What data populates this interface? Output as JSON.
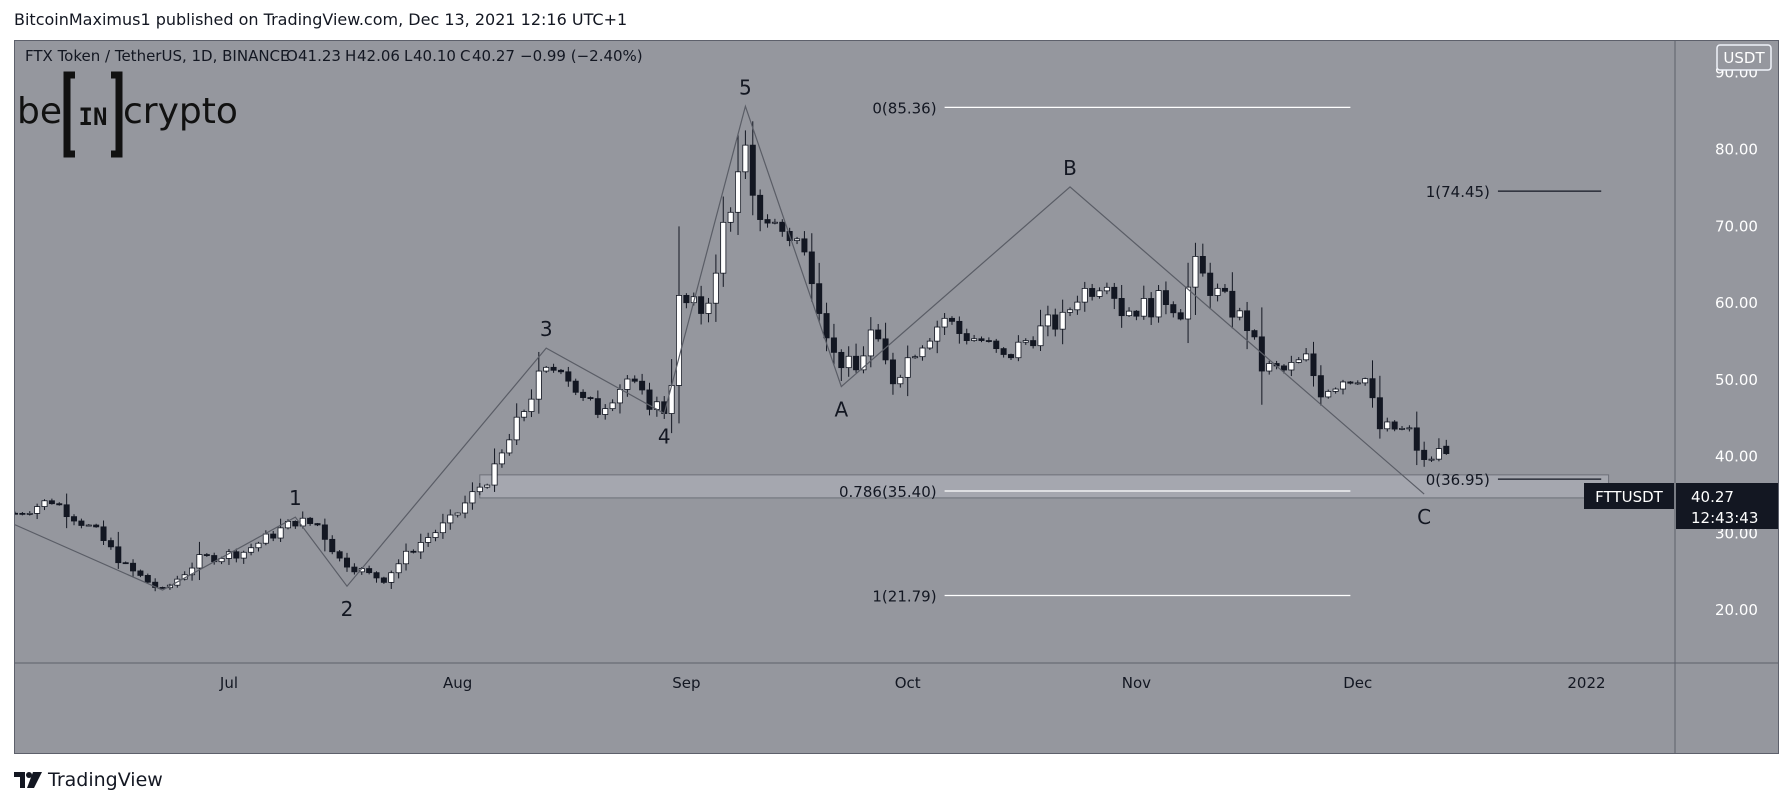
{
  "publish_line": "BitcoinMaximus1 published on TradingView.com, Dec 13, 2021 12:16 UTC+1",
  "logo": {
    "left": "be",
    "middle": "IN",
    "right": "crypto"
  },
  "footer": {
    "brand": "TradingView",
    "icon": "tradingview-logo-icon"
  },
  "colors": {
    "chart_bg": "#95979e",
    "candle_up": "#ffffff",
    "candle_down": "#131722",
    "wave_line": "#5a5d66",
    "fib_line": "#ffffff",
    "last_price_label_bg": "#131722",
    "zone_fill": "#b2b5bd"
  },
  "symbol_header": {
    "title": "FTX Token / TetherUS, 1D, BINANCE",
    "o_label": "O",
    "o_value": "41.23",
    "h_label": "H",
    "h_value": "42.06",
    "l_label": "L",
    "l_value": "40.10",
    "c_label": "C",
    "c_value": "40.27",
    "change": "−0.99 (−2.40%)"
  },
  "currency_label": "USDT",
  "last_price": {
    "ticker": "FTTUSDT",
    "price": "40.27",
    "countdown": "12:43:43"
  },
  "chart_data": {
    "type": "candlestick",
    "title": "FTX Token / TetherUS, 1D, BINANCE",
    "xlabel": "",
    "ylabel": "",
    "y_unit": "USDT",
    "ylim": [
      13,
      94
    ],
    "y_ticks": [
      "20.00",
      "30.00",
      "40.00",
      "50.00",
      "60.00",
      "70.00",
      "80.00",
      "90.00"
    ],
    "x_range": [
      "2021-06-02",
      "2022-01-13"
    ],
    "x_ticks": [
      {
        "date": "2021-07-01",
        "label": "Jul"
      },
      {
        "date": "2021-08-01",
        "label": "Aug"
      },
      {
        "date": "2021-09-01",
        "label": "Sep"
      },
      {
        "date": "2021-10-01",
        "label": "Oct"
      },
      {
        "date": "2021-11-01",
        "label": "Nov"
      },
      {
        "date": "2021-12-01",
        "label": "Dec"
      },
      {
        "date": "2022-01-01",
        "label": "2022"
      }
    ],
    "price_key_points": [
      [
        "2021-06-02",
        32.5
      ],
      [
        "2021-06-07",
        34.2
      ],
      [
        "2021-06-13",
        30
      ],
      [
        "2021-06-17",
        25.5
      ],
      [
        "2021-06-22",
        22.3
      ],
      [
        "2021-06-27",
        26.5
      ],
      [
        "2021-07-03",
        27.5
      ],
      [
        "2021-07-10",
        31.5
      ],
      [
        "2021-07-13",
        31
      ],
      [
        "2021-07-16",
        26.5
      ],
      [
        "2021-07-20",
        24.5
      ],
      [
        "2021-07-22",
        24
      ],
      [
        "2021-07-26",
        28
      ],
      [
        "2021-07-31",
        31.5
      ],
      [
        "2021-08-04",
        36
      ],
      [
        "2021-08-06",
        38
      ],
      [
        "2021-08-09",
        44
      ],
      [
        "2021-08-12",
        50
      ],
      [
        "2021-08-15",
        52
      ],
      [
        "2021-08-18",
        47
      ],
      [
        "2021-08-20",
        46
      ],
      [
        "2021-08-24",
        50
      ],
      [
        "2021-08-26",
        47.5
      ],
      [
        "2021-08-29",
        46
      ],
      [
        "2021-08-30",
        50
      ],
      [
        "2021-08-31",
        60
      ],
      [
        "2021-09-03",
        59
      ],
      [
        "2021-09-05",
        63
      ],
      [
        "2021-09-06",
        70
      ],
      [
        "2021-09-08",
        76
      ],
      [
        "2021-09-09",
        79
      ],
      [
        "2021-09-10",
        72.5
      ],
      [
        "2021-09-13",
        70
      ],
      [
        "2021-09-16",
        68
      ],
      [
        "2021-09-18",
        64
      ],
      [
        "2021-09-19",
        60
      ],
      [
        "2021-09-21",
        53
      ],
      [
        "2021-09-24",
        51
      ],
      [
        "2021-09-26",
        56
      ],
      [
        "2021-09-29",
        50
      ],
      [
        "2021-10-02",
        54
      ],
      [
        "2021-10-06",
        58
      ],
      [
        "2021-10-08",
        56
      ],
      [
        "2021-10-11",
        55
      ],
      [
        "2021-10-14",
        52.5
      ],
      [
        "2021-10-17",
        55
      ],
      [
        "2021-10-20",
        57
      ],
      [
        "2021-10-22",
        57.5
      ],
      [
        "2021-10-24",
        61
      ],
      [
        "2021-10-26",
        62
      ],
      [
        "2021-10-28",
        63.5
      ],
      [
        "2021-10-30",
        59
      ],
      [
        "2021-11-03",
        59.5
      ],
      [
        "2021-11-05",
        60.5
      ],
      [
        "2021-11-07",
        59
      ],
      [
        "2021-11-09",
        64.5
      ],
      [
        "2021-11-11",
        62
      ],
      [
        "2021-11-13",
        60
      ],
      [
        "2021-11-16",
        57
      ],
      [
        "2021-11-18",
        51.5
      ],
      [
        "2021-11-21",
        51
      ],
      [
        "2021-11-24",
        52.5
      ],
      [
        "2021-11-26",
        48.5
      ],
      [
        "2021-11-29",
        50
      ],
      [
        "2021-12-01",
        50.5
      ],
      [
        "2021-12-02",
        50
      ],
      [
        "2021-12-04",
        43.5
      ],
      [
        "2021-12-06",
        43.5
      ],
      [
        "2021-12-08",
        43
      ],
      [
        "2021-12-10",
        39
      ],
      [
        "2021-12-12",
        40.5
      ],
      [
        "2021-12-13",
        40.27
      ]
    ],
    "last_date": "2021-12-13",
    "last_close": 40.27,
    "final_candle": {
      "open": 41.23,
      "high": 42.06,
      "low": 40.1,
      "close": 40.27
    },
    "wave_path": [
      {
        "label": "",
        "date": "2021-06-02",
        "value": 31
      },
      {
        "label": "",
        "date": "2021-06-22",
        "value": 22.5
      },
      {
        "label": "1",
        "date": "2021-07-10",
        "value": 32
      },
      {
        "label": "2",
        "date": "2021-07-17",
        "value": 23
      },
      {
        "label": "3",
        "date": "2021-08-13",
        "value": 54
      },
      {
        "label": "4",
        "date": "2021-08-29",
        "value": 45.5
      },
      {
        "label": "5",
        "date": "2021-09-09",
        "value": 85.5
      },
      {
        "label": "A",
        "date": "2021-09-22",
        "value": 49
      },
      {
        "label": "B",
        "date": "2021-10-23",
        "value": 75
      },
      {
        "label": "C",
        "date": "2021-12-10",
        "value": 35
      }
    ],
    "support_zone": {
      "from": "2021-08-04",
      "to": "2022-01-04",
      "low": 34.5,
      "high": 37.5
    },
    "fib_levels": [
      {
        "label": "0(85.36)",
        "value": 85.36,
        "from": "2021-10-06",
        "to": "2021-11-30"
      },
      {
        "label": "1(74.45)",
        "value": 74.45,
        "from": "2021-12-20",
        "to": "2022-01-03"
      },
      {
        "label": "0.786(35.40)",
        "value": 35.4,
        "from": "2021-10-06",
        "to": "2021-11-30"
      },
      {
        "label": "0(36.95)",
        "value": 36.95,
        "from": "2021-12-20",
        "to": "2022-01-03"
      },
      {
        "label": "1(21.79)",
        "value": 21.79,
        "from": "2021-10-06",
        "to": "2021-11-30"
      }
    ]
  }
}
